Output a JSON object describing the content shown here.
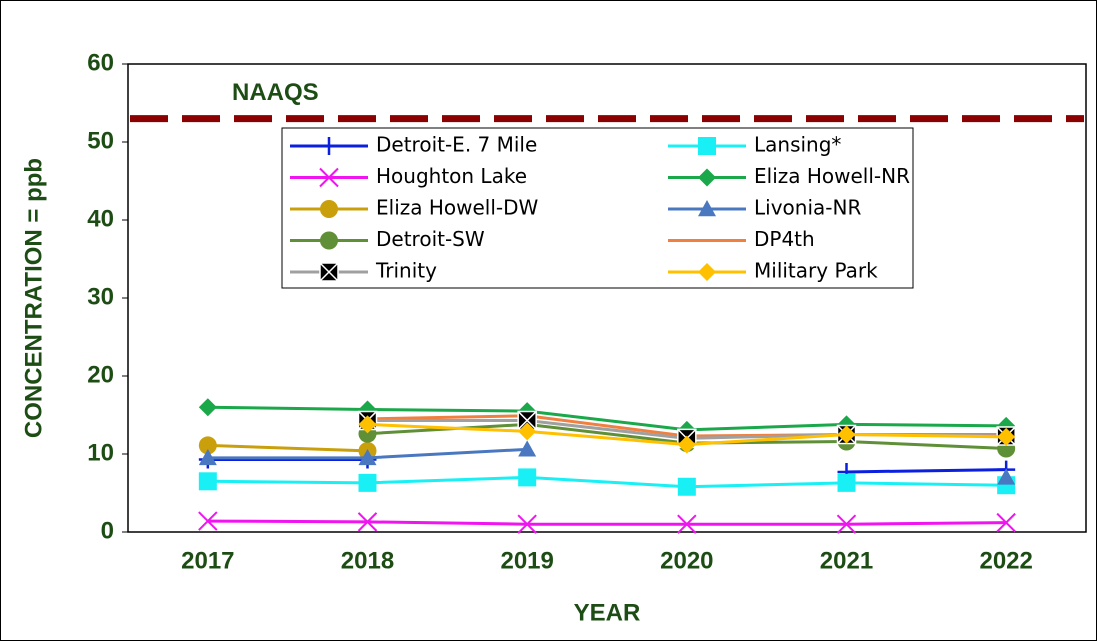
{
  "chart_data": {
    "type": "line",
    "y_label": "CONCENTRATION = ppb",
    "x_label": "YEAR",
    "categories": [
      "2017",
      "2018",
      "2019",
      "2020",
      "2021",
      "2022"
    ],
    "ylim": [
      0,
      60
    ],
    "yticks": [
      0,
      10,
      20,
      30,
      40,
      50,
      60
    ],
    "reference_line": {
      "label": "NAAQS",
      "value": 53,
      "color": "#8b0000"
    },
    "series": [
      {
        "name": "Detroit-E. 7 Mile",
        "color": "#0a1fe0",
        "marker": "plus",
        "values": [
          9.3,
          9.3,
          null,
          null,
          7.7,
          8.0
        ]
      },
      {
        "name": "Lansing*",
        "color": "#19f0f5",
        "marker": "square",
        "values": [
          6.5,
          6.3,
          7.0,
          5.8,
          6.3,
          6.0
        ]
      },
      {
        "name": "Houghton Lake",
        "color": "#f014f0",
        "marker": "x",
        "values": [
          1.4,
          1.3,
          1.0,
          1.0,
          1.0,
          1.2
        ]
      },
      {
        "name": "Eliza Howell-NR",
        "color": "#1aa84a",
        "marker": "diamond",
        "values": [
          16.0,
          15.7,
          15.5,
          13.1,
          13.8,
          13.6
        ]
      },
      {
        "name": "Eliza Howell-DW",
        "color": "#c9a00c",
        "marker": "circle",
        "values": [
          11.1,
          10.4,
          null,
          null,
          null,
          null
        ]
      },
      {
        "name": "Livonia-NR",
        "color": "#4a78c0",
        "marker": "triangle",
        "values": [
          9.5,
          9.5,
          10.6,
          null,
          null,
          7.0
        ]
      },
      {
        "name": "Detroit-SW",
        "color": "#5f8f36",
        "marker": "circle",
        "values": [
          null,
          12.6,
          13.8,
          11.4,
          11.6,
          10.7
        ]
      },
      {
        "name": "DP4th",
        "color": "#f08040",
        "marker": "dash",
        "values": [
          null,
          14.5,
          14.9,
          12.3,
          12.5,
          12.5
        ]
      },
      {
        "name": "Trinity",
        "color": "#a0a0a0",
        "marker": "xbox",
        "values": [
          null,
          14.3,
          14.3,
          12.0,
          12.5,
          12.3
        ]
      },
      {
        "name": "Military Park",
        "color": "#ffc000",
        "marker": "diamond",
        "values": [
          null,
          13.8,
          12.9,
          11.2,
          12.5,
          12.2
        ]
      }
    ]
  }
}
